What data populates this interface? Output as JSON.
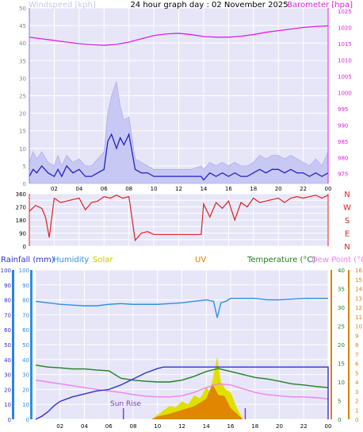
{
  "header": {
    "title": "24 hour graph day : 02 November 2025",
    "wind_label": "Windspeed [kph]",
    "baro_label": "Barometer [hpa]"
  },
  "colors": {
    "wind_avg": "#2020c8",
    "wind_gust": "#c8c8f4",
    "baro": "#e020e0",
    "direction": "#e02020",
    "rain": "#3030d0",
    "humidity": "#3090e0",
    "solar": "#e0e000",
    "uv": "#e08000",
    "temperature": "#208020",
    "dewpoint": "#f080f0",
    "panel_bg": "#e6e6f8",
    "grid": "#ffffff"
  },
  "time_axis": {
    "ticks": [
      "02",
      "04",
      "06",
      "08",
      "10",
      "12",
      "14",
      "16",
      "18",
      "20",
      "22",
      "00"
    ]
  },
  "chart_data": [
    {
      "type": "line",
      "title": "24 hour graph day : 02 November 2025",
      "xlabel": "",
      "ylabel": "Windspeed [kph]",
      "y2label": "Barometer [hpa]",
      "x_unit": "hour",
      "xlim": [
        0,
        24
      ],
      "ylim": [
        0,
        50
      ],
      "y_ticks": [
        0,
        5,
        10,
        15,
        20,
        25,
        30,
        35,
        40,
        45,
        50
      ],
      "y2lim": [
        972,
        1026
      ],
      "y2_ticks": [
        975,
        980,
        985,
        990,
        995,
        1000,
        1005,
        1010,
        1015,
        1020,
        1025
      ],
      "grid": true,
      "series": [
        {
          "name": "Windspeed",
          "axis": "left",
          "x": [
            0,
            0.3,
            0.6,
            1,
            1.5,
            2,
            2.3,
            2.6,
            3,
            3.5,
            4,
            4.5,
            5,
            5.5,
            6,
            6.3,
            6.6,
            7,
            7.3,
            7.6,
            8,
            8.5,
            9,
            9.5,
            10,
            11,
            12,
            13,
            13.8,
            14,
            14.5,
            15,
            15.5,
            16,
            16.5,
            17,
            17.5,
            18,
            18.5,
            19,
            19.5,
            20,
            20.5,
            21,
            21.5,
            22,
            22.5,
            23,
            23.5,
            24
          ],
          "y": [
            2,
            4,
            3,
            5,
            3,
            2,
            4,
            2,
            5,
            3,
            4,
            2,
            2,
            3,
            4,
            12,
            14,
            10,
            13,
            11,
            14,
            4,
            3,
            3,
            2,
            2,
            2,
            2,
            2,
            1,
            3,
            2,
            3,
            2,
            3,
            2,
            2,
            3,
            4,
            3,
            4,
            4,
            3,
            4,
            3,
            3,
            2,
            3,
            2,
            3
          ]
        },
        {
          "name": "Gust",
          "axis": "left",
          "x": [
            0,
            0.3,
            0.6,
            1,
            1.5,
            2,
            2.3,
            2.6,
            3,
            3.5,
            4,
            4.5,
            5,
            5.5,
            6,
            6.3,
            6.6,
            7,
            7.3,
            7.6,
            8,
            8.5,
            9,
            9.5,
            10,
            11,
            12,
            13,
            13.8,
            14,
            14.5,
            15,
            15.5,
            16,
            16.5,
            17,
            17.5,
            18,
            18.5,
            19,
            19.5,
            20,
            20.5,
            21,
            21.5,
            22,
            22.5,
            23,
            23.5,
            24
          ],
          "y": [
            6,
            9,
            7,
            9,
            6,
            5,
            8,
            5,
            8,
            6,
            7,
            5,
            5,
            7,
            9,
            20,
            25,
            29,
            22,
            18,
            19,
            7,
            6,
            5,
            4,
            4,
            4,
            4,
            5,
            4,
            6,
            5,
            6,
            5,
            6,
            5,
            5,
            6,
            8,
            7,
            8,
            8,
            7,
            8,
            7,
            6,
            5,
            7,
            5,
            9
          ]
        },
        {
          "name": "Barometer",
          "axis": "right",
          "x": [
            0,
            1,
            2,
            3,
            4,
            5,
            6,
            7,
            8,
            9,
            10,
            11,
            12,
            13,
            14,
            15,
            16,
            17,
            18,
            19,
            20,
            21,
            22,
            23,
            24
          ],
          "y": [
            1017,
            1016.5,
            1016,
            1015.5,
            1015,
            1014.7,
            1014.5,
            1014.8,
            1015.5,
            1016.5,
            1017.5,
            1018,
            1018.2,
            1017.8,
            1017.2,
            1017,
            1017,
            1017.3,
            1017.8,
            1018.5,
            1019,
            1019.5,
            1020,
            1020.3,
            1020.5
          ]
        }
      ]
    },
    {
      "type": "scatter",
      "title": "",
      "ylabel": "",
      "xlim": [
        0,
        24
      ],
      "ylim": [
        0,
        360
      ],
      "y_ticks": [
        0,
        45,
        90,
        135,
        180,
        225,
        270,
        315,
        360
      ],
      "compass_labels": [
        "N",
        "W",
        "S",
        "E",
        "N"
      ],
      "series": [
        {
          "name": "Direction",
          "x": [
            0,
            0.5,
            1,
            1.3,
            1.6,
            2,
            2.5,
            3,
            3.5,
            4,
            4.5,
            5,
            5.5,
            6,
            6.5,
            7,
            7.5,
            8,
            8.5,
            9,
            9.5,
            10,
            11,
            12,
            13,
            13.8,
            14,
            14.5,
            15,
            15.5,
            16,
            16.5,
            17,
            17.5,
            18,
            18.5,
            19,
            19.5,
            20,
            20.5,
            21,
            21.5,
            22,
            22.5,
            23,
            23.5,
            24
          ],
          "y": [
            240,
            280,
            260,
            200,
            60,
            330,
            300,
            310,
            320,
            330,
            250,
            300,
            310,
            340,
            330,
            350,
            330,
            340,
            40,
            90,
            100,
            80,
            80,
            80,
            80,
            80,
            290,
            200,
            300,
            260,
            310,
            180,
            300,
            270,
            330,
            300,
            310,
            320,
            330,
            300,
            330,
            340,
            330,
            340,
            350,
            330,
            350
          ]
        }
      ]
    },
    {
      "type": "line",
      "title": "",
      "xlim": [
        0,
        24
      ],
      "axes": {
        "rain_mm": {
          "ylim": [
            0,
            100
          ],
          "ticks": [
            0,
            10,
            20,
            30,
            40,
            50,
            60,
            70,
            80,
            90,
            100
          ]
        },
        "humidity": {
          "ylim": [
            0,
            100
          ],
          "ticks": [
            0,
            10,
            20,
            30,
            40,
            50,
            60,
            70,
            80,
            90,
            100
          ]
        },
        "temperature": {
          "ylim": [
            0,
            40
          ],
          "ticks": [
            0,
            5,
            10,
            15,
            20,
            25,
            30,
            35,
            40
          ]
        },
        "uv": {
          "ylim": [
            0,
            16
          ],
          "ticks": [
            0,
            1,
            2,
            3,
            4,
            5,
            6,
            7,
            8,
            9,
            10,
            11,
            12,
            13,
            14,
            15,
            16
          ]
        }
      },
      "legend": [
        "Rainfall (mm)",
        "Humidity",
        "Solar",
        "UV",
        "Temperature (°C)",
        "Dew Point (°C)"
      ],
      "annotations": [
        "Sun Rise"
      ],
      "series": [
        {
          "name": "Humidity",
          "axis": "humidity",
          "x": [
            0,
            1,
            2,
            3,
            4,
            5,
            6,
            7,
            8,
            9,
            10,
            11,
            12,
            13,
            14,
            14.6,
            14.9,
            15.2,
            15.6,
            16,
            17,
            18,
            19,
            20,
            21,
            22,
            23,
            24
          ],
          "y": [
            79,
            78,
            77,
            76.5,
            76,
            76,
            77,
            77.5,
            77,
            77,
            77,
            77.5,
            78,
            79,
            80,
            79,
            68,
            78,
            79,
            81,
            81,
            81,
            80,
            80,
            80.5,
            81,
            81,
            81
          ]
        },
        {
          "name": "Temperature",
          "axis": "temperature",
          "x": [
            0,
            1,
            2,
            3,
            4,
            5,
            6,
            7,
            8,
            9,
            10,
            11,
            12,
            13,
            14,
            15,
            16,
            17,
            18,
            19,
            20,
            21,
            22,
            23,
            24
          ],
          "y": [
            14.5,
            14,
            13.8,
            13.5,
            13.5,
            13.2,
            13,
            11,
            10.5,
            10.2,
            10,
            10,
            10.5,
            11.5,
            12.8,
            13.6,
            12.8,
            12,
            11.2,
            10.8,
            10.2,
            9.5,
            9.2,
            8.8,
            8.5
          ]
        },
        {
          "name": "Dew Point",
          "axis": "temperature",
          "x": [
            0,
            1,
            2,
            3,
            4,
            5,
            6,
            7,
            8,
            9,
            10,
            11,
            12,
            13,
            14,
            15,
            16,
            17,
            18,
            19,
            20,
            21,
            22,
            23,
            24
          ],
          "y": [
            10.5,
            10,
            9.5,
            9,
            8.5,
            8,
            7.6,
            7.2,
            6.6,
            6.2,
            6,
            6,
            6.3,
            7.2,
            8.5,
            9.5,
            9.2,
            8.2,
            7.2,
            6.6,
            6.3,
            6,
            6,
            5.8,
            5.5
          ]
        },
        {
          "name": "Rainfall",
          "axis": "rain_mm",
          "x": [
            0,
            0.5,
            1,
            1.5,
            2,
            3,
            4,
            5,
            6,
            7,
            8,
            9,
            10,
            10.5,
            11,
            12,
            13,
            14,
            15,
            16,
            17,
            18,
            19,
            20,
            21,
            22,
            23,
            24,
            24
          ],
          "y": [
            0,
            2,
            5,
            9,
            12,
            15,
            17,
            19,
            20,
            23,
            27,
            31,
            34,
            35,
            35,
            35,
            35,
            35,
            35,
            35,
            35,
            35,
            35,
            35,
            35,
            35,
            35,
            35,
            0
          ]
        },
        {
          "name": "UV",
          "axis": "uv",
          "x": [
            0,
            9.5,
            10,
            11,
            12,
            13,
            14,
            14.5,
            15,
            15.5,
            16,
            17,
            24
          ],
          "y": [
            0,
            0,
            0.3,
            0.6,
            1,
            1.4,
            2.2,
            3.8,
            2.6,
            2.5,
            1.2,
            0,
            0
          ]
        },
        {
          "name": "Solar",
          "axis": "humidity",
          "x": [
            0,
            9.5,
            10,
            10.5,
            11,
            11.5,
            12,
            12.5,
            13,
            13.5,
            14,
            14.3,
            14.6,
            14.9,
            15.2,
            15.6,
            16,
            16.5,
            17,
            24
          ],
          "y": [
            0,
            0,
            3,
            6,
            9,
            8,
            12,
            10,
            16,
            14,
            22,
            18,
            30,
            42,
            25,
            20,
            18,
            8,
            0,
            0
          ]
        }
      ]
    }
  ]
}
